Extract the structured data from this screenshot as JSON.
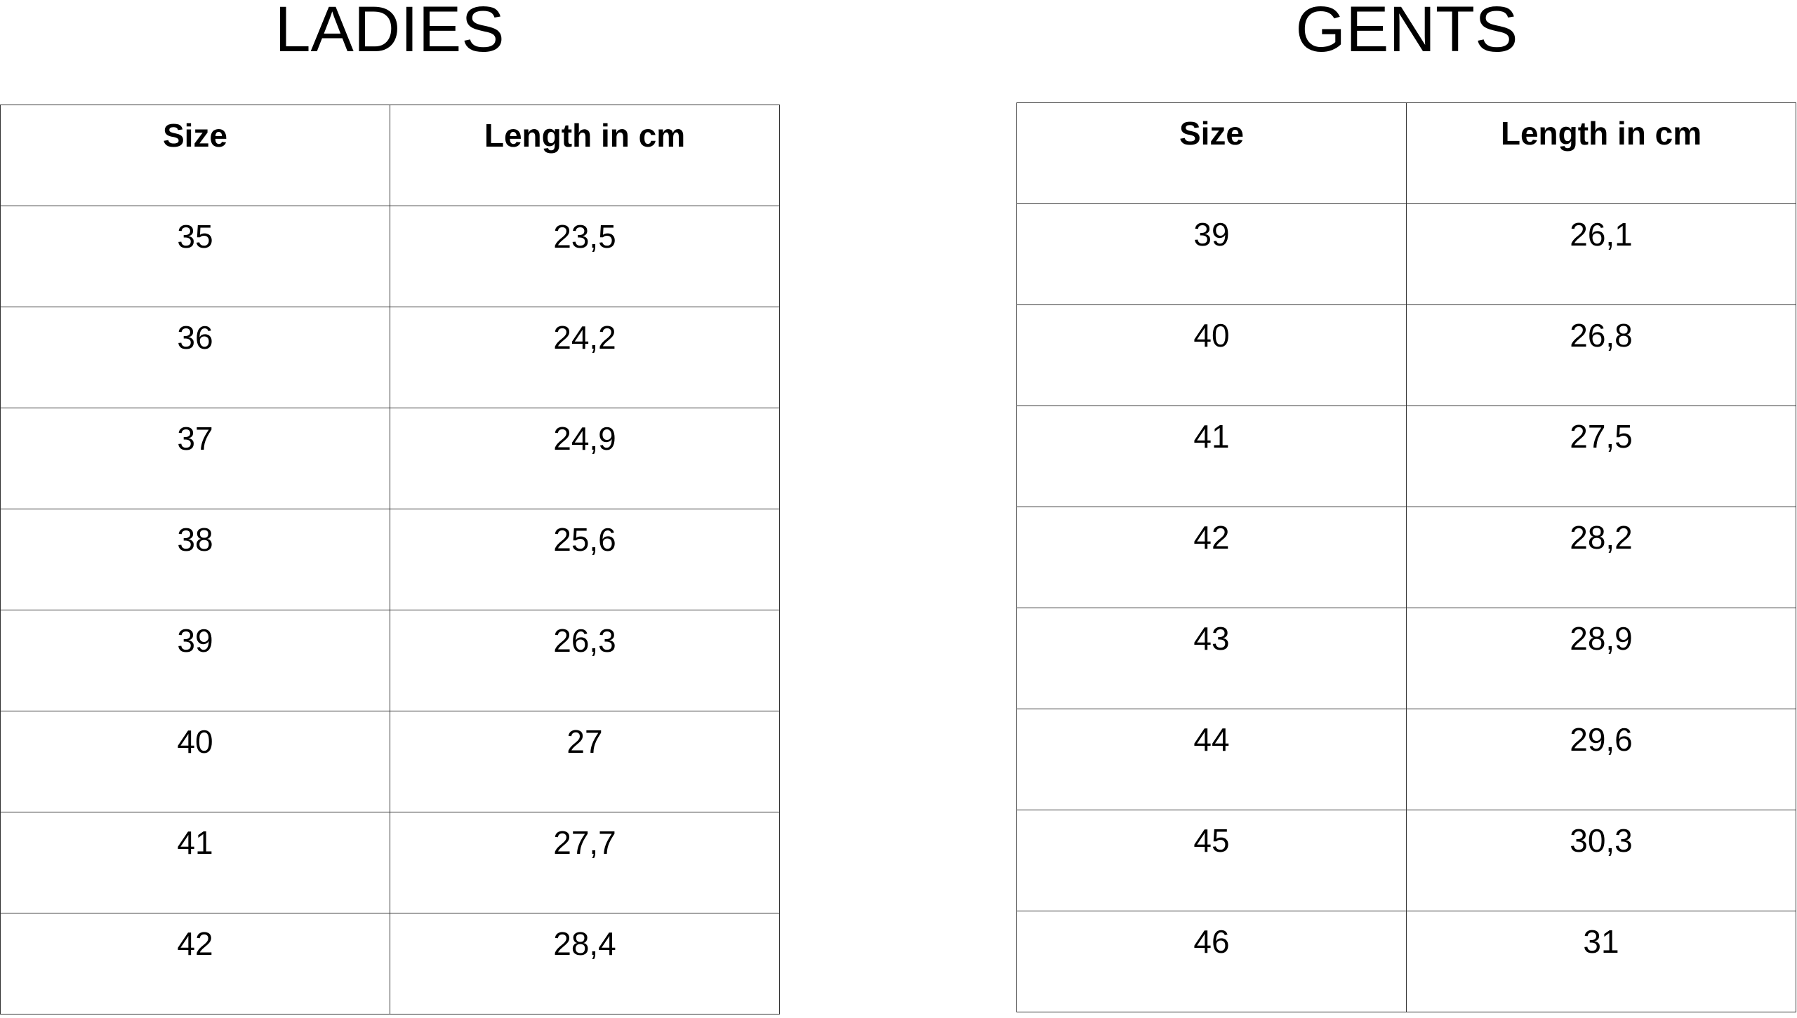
{
  "ladies": {
    "title": "LADIES",
    "headers": {
      "size": "Size",
      "length": "Length in cm"
    },
    "rows": [
      {
        "size": "35",
        "length": "23,5"
      },
      {
        "size": "36",
        "length": "24,2"
      },
      {
        "size": "37",
        "length": "24,9"
      },
      {
        "size": "38",
        "length": "25,6"
      },
      {
        "size": "39",
        "length": "26,3"
      },
      {
        "size": "40",
        "length": "27"
      },
      {
        "size": "41",
        "length": "27,7"
      },
      {
        "size": "42",
        "length": "28,4"
      }
    ]
  },
  "gents": {
    "title": "GENTS",
    "headers": {
      "size": "Size",
      "length": "Length in cm"
    },
    "rows": [
      {
        "size": "39",
        "length": "26,1"
      },
      {
        "size": "40",
        "length": "26,8"
      },
      {
        "size": "41",
        "length": "27,5"
      },
      {
        "size": "42",
        "length": "28,2"
      },
      {
        "size": "43",
        "length": "28,9"
      },
      {
        "size": "44",
        "length": "29,6"
      },
      {
        "size": "45",
        "length": "30,3"
      },
      {
        "size": "46",
        "length": "31"
      }
    ]
  }
}
